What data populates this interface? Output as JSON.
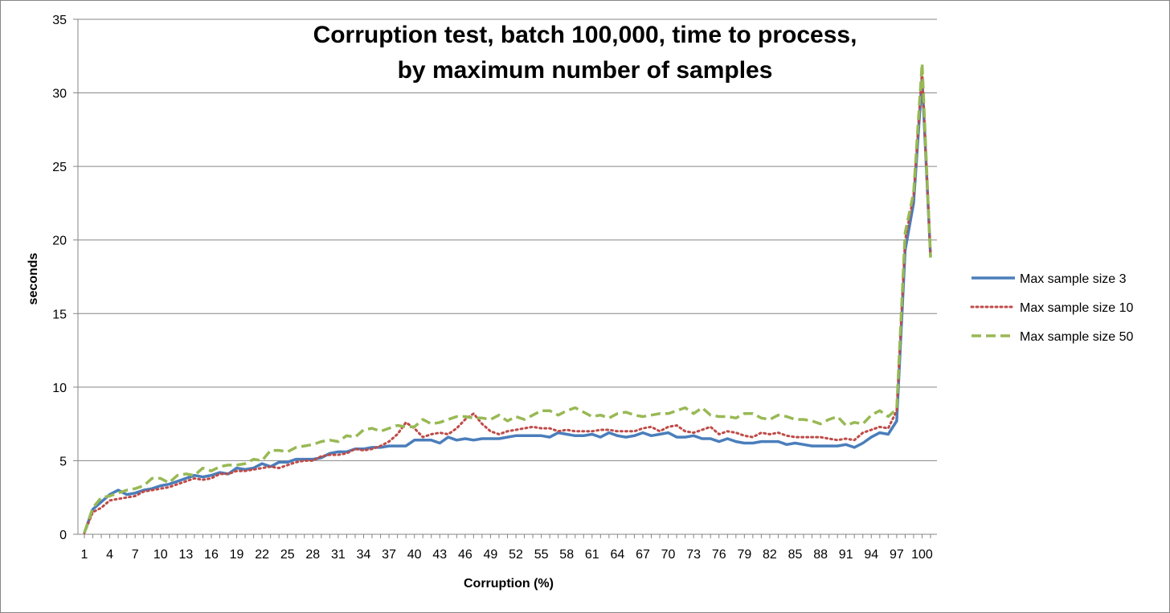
{
  "chart_data": {
    "type": "line",
    "title_lines": [
      "Corruption test, batch 100,000, time to process,",
      "by maximum number of samples"
    ],
    "xlabel": "Corruption  (%)",
    "ylabel": "seconds",
    "ylim": [
      0,
      35
    ],
    "yticks": [
      0,
      5,
      10,
      15,
      20,
      25,
      30,
      35
    ],
    "x_tick_labels": [
      "1",
      "4",
      "7",
      "10",
      "13",
      "16",
      "19",
      "22",
      "25",
      "28",
      "31",
      "34",
      "37",
      "40",
      "43",
      "46",
      "49",
      "52",
      "55",
      "58",
      "61",
      "64",
      "67",
      "70",
      "73",
      "76",
      "79",
      "82",
      "85",
      "88",
      "91",
      "94",
      "97",
      "100"
    ],
    "grid": true,
    "legend_position": "right",
    "x": [
      1,
      2,
      3,
      4,
      5,
      6,
      7,
      8,
      9,
      10,
      11,
      12,
      13,
      14,
      15,
      16,
      17,
      18,
      19,
      20,
      21,
      22,
      23,
      24,
      25,
      26,
      27,
      28,
      29,
      30,
      31,
      32,
      33,
      34,
      35,
      36,
      37,
      38,
      39,
      40,
      41,
      42,
      43,
      44,
      45,
      46,
      47,
      48,
      49,
      50,
      51,
      52,
      53,
      54,
      55,
      56,
      57,
      58,
      59,
      60,
      61,
      62,
      63,
      64,
      65,
      66,
      67,
      68,
      69,
      70,
      71,
      72,
      73,
      74,
      75,
      76,
      77,
      78,
      79,
      80,
      81,
      82,
      83,
      84,
      85,
      86,
      87,
      88,
      89,
      90,
      91,
      92,
      93,
      94,
      95,
      96,
      97,
      98,
      99,
      100,
      101
    ],
    "series": [
      {
        "name": "Max sample size 3",
        "color": "#4a7ebb",
        "style": "solid",
        "values": [
          0.1,
          1.7,
          2.2,
          2.7,
          3.0,
          2.7,
          2.8,
          3.0,
          3.1,
          3.3,
          3.4,
          3.6,
          3.8,
          4.0,
          3.9,
          4.0,
          4.2,
          4.1,
          4.5,
          4.4,
          4.5,
          4.8,
          4.6,
          4.9,
          4.9,
          5.1,
          5.1,
          5.1,
          5.2,
          5.5,
          5.6,
          5.6,
          5.8,
          5.8,
          5.9,
          5.9,
          6.0,
          6.0,
          6.0,
          6.4,
          6.4,
          6.4,
          6.2,
          6.6,
          6.4,
          6.5,
          6.4,
          6.5,
          6.5,
          6.5,
          6.6,
          6.7,
          6.7,
          6.7,
          6.7,
          6.6,
          6.9,
          6.8,
          6.7,
          6.7,
          6.8,
          6.6,
          6.9,
          6.7,
          6.6,
          6.7,
          6.9,
          6.7,
          6.8,
          6.9,
          6.6,
          6.6,
          6.7,
          6.5,
          6.5,
          6.3,
          6.5,
          6.3,
          6.2,
          6.2,
          6.3,
          6.3,
          6.3,
          6.1,
          6.2,
          6.1,
          6.0,
          6.0,
          6.0,
          6.0,
          6.1,
          5.9,
          6.2,
          6.6,
          6.9,
          6.8,
          7.7,
          19.3,
          22.5,
          31.0,
          18.9
        ]
      },
      {
        "name": "Max sample size 10",
        "color": "#be4b48",
        "style": "dotted",
        "values": [
          0.1,
          1.5,
          1.8,
          2.3,
          2.4,
          2.5,
          2.6,
          2.9,
          3.0,
          3.1,
          3.2,
          3.4,
          3.6,
          3.8,
          3.7,
          3.8,
          4.1,
          4.1,
          4.3,
          4.3,
          4.4,
          4.5,
          4.6,
          4.5,
          4.7,
          4.9,
          5.0,
          5.0,
          5.3,
          5.4,
          5.4,
          5.5,
          5.8,
          5.7,
          5.8,
          6.0,
          6.3,
          6.8,
          7.6,
          7.2,
          6.6,
          6.8,
          6.9,
          6.8,
          7.2,
          7.8,
          8.2,
          7.5,
          7.0,
          6.8,
          7.0,
          7.1,
          7.2,
          7.3,
          7.2,
          7.2,
          7.0,
          7.1,
          7.0,
          7.0,
          7.0,
          7.1,
          7.1,
          7.0,
          7.0,
          7.0,
          7.2,
          7.3,
          7.0,
          7.3,
          7.4,
          7.0,
          6.9,
          7.1,
          7.3,
          6.8,
          7.0,
          6.9,
          6.7,
          6.6,
          6.9,
          6.8,
          6.9,
          6.7,
          6.6,
          6.6,
          6.6,
          6.6,
          6.5,
          6.4,
          6.5,
          6.4,
          6.9,
          7.1,
          7.3,
          7.2,
          8.4,
          20.0,
          23.0,
          31.5,
          19.0
        ]
      },
      {
        "name": "Max sample size 50",
        "color": "#98b954",
        "style": "dashed",
        "values": [
          0.1,
          1.8,
          2.5,
          2.6,
          2.8,
          3.0,
          3.1,
          3.3,
          3.8,
          3.8,
          3.5,
          4.0,
          4.1,
          4.0,
          4.5,
          4.3,
          4.6,
          4.7,
          4.7,
          4.8,
          5.1,
          5.0,
          5.7,
          5.7,
          5.6,
          5.9,
          6.0,
          6.1,
          6.3,
          6.4,
          6.3,
          6.7,
          6.6,
          7.1,
          7.2,
          7.0,
          7.2,
          7.4,
          7.3,
          7.3,
          7.8,
          7.5,
          7.6,
          7.8,
          8.0,
          8.0,
          7.9,
          7.9,
          7.8,
          8.1,
          7.7,
          8.0,
          7.8,
          8.1,
          8.4,
          8.4,
          8.1,
          8.4,
          8.6,
          8.3,
          8.0,
          8.1,
          7.9,
          8.2,
          8.3,
          8.1,
          8.0,
          8.1,
          8.2,
          8.2,
          8.4,
          8.6,
          8.2,
          8.6,
          8.1,
          8.0,
          8.0,
          7.9,
          8.2,
          8.2,
          7.9,
          7.8,
          8.1,
          8.0,
          7.8,
          7.8,
          7.7,
          7.5,
          7.8,
          8.0,
          7.4,
          7.6,
          7.5,
          8.1,
          8.4,
          8.0,
          8.5,
          20.5,
          23.2,
          32.0,
          18.8
        ]
      }
    ]
  }
}
